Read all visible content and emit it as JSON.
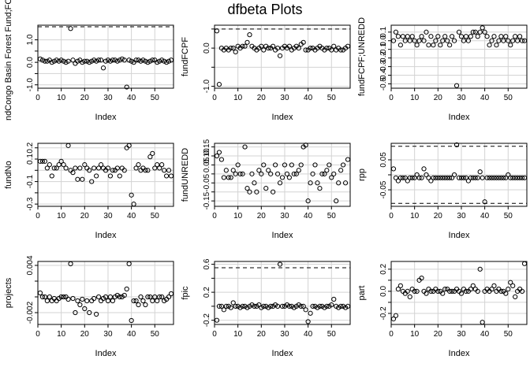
{
  "figure_title": "dfbeta Plots",
  "colors": {
    "grid": "#d3d3d3",
    "ink": "#000000",
    "background": "#ffffff"
  },
  "chart_data": [
    {
      "type": "scatter",
      "xlabel": "Index",
      "ylabel": "ndCongo Basin Forest Fund;FCF",
      "xlim": [
        0,
        58
      ],
      "ylim": [
        -1.15,
        1.65
      ],
      "xticks": [
        0,
        10,
        20,
        30,
        40,
        50
      ],
      "yticks": [
        -1.0,
        -0.5,
        0.0,
        0.5,
        1.0
      ],
      "ytick_labels": [
        "-1.0",
        "",
        "0.0",
        "",
        "1.0"
      ],
      "grid": true,
      "hlines": [
        1.58
      ],
      "y": [
        0.15,
        0.1,
        0.05,
        0.05,
        0.1,
        0.0,
        0.05,
        0.1,
        0.05,
        0.1,
        0.05,
        0.0,
        0.05,
        1.5,
        0.1,
        -0.05,
        0.05,
        0.1,
        0.0,
        0.05,
        0.05,
        0.0,
        0.05,
        0.1,
        0.05,
        0.1,
        0.1,
        -0.25,
        0.05,
        0.1,
        0.05,
        0.1,
        0.1,
        0.05,
        0.1,
        0.15,
        0.1,
        -1.1,
        0.1,
        0.05,
        0.0,
        0.1,
        0.1,
        0.05,
        0.1,
        0.05,
        0.0,
        0.05,
        0.1,
        0.1,
        0.0,
        0.05,
        0.1,
        0.05,
        0.0,
        0.05,
        0.1
      ]
    },
    {
      "type": "scatter",
      "xlabel": "Index",
      "ylabel": "fundFCPF",
      "xlim": [
        0,
        58
      ],
      "ylim": [
        -1.05,
        0.6
      ],
      "xticks": [
        0,
        10,
        20,
        30,
        40,
        50
      ],
      "yticks": [
        -1.0,
        -0.5,
        0.0,
        0.5
      ],
      "ytick_labels": [
        "-1.0",
        "",
        "0.0",
        ""
      ],
      "grid": true,
      "hlines": [
        0.5
      ],
      "y": [
        0.45,
        -0.95,
        0.0,
        -0.05,
        0.0,
        -0.05,
        0.0,
        0.0,
        -0.1,
        0.05,
        0.0,
        0.05,
        0.05,
        0.15,
        0.35,
        0.05,
        0.0,
        -0.05,
        0.0,
        0.05,
        -0.05,
        0.05,
        0.0,
        0.0,
        0.05,
        -0.05,
        0.0,
        -0.2,
        0.0,
        0.05,
        0.0,
        0.05,
        -0.05,
        0.0,
        0.05,
        0.0,
        0.1,
        0.15,
        -0.05,
        -0.05,
        0.0,
        0.0,
        -0.05,
        0.0,
        0.05,
        0.0,
        -0.05,
        0.0,
        0.0,
        -0.05,
        0.05,
        -0.05,
        0.0,
        -0.05,
        -0.05,
        0.0,
        0.05
      ]
    },
    {
      "type": "scatter",
      "xlabel": "Index",
      "ylabel": "fundFCPF;UNREDD",
      "xlim": [
        0,
        58
      ],
      "ylim": [
        -0.55,
        0.18
      ],
      "xticks": [
        0,
        10,
        20,
        30,
        40,
        50
      ],
      "yticks": [
        -0.5,
        -0.4,
        -0.3,
        -0.2,
        -0.1,
        0.0,
        0.1
      ],
      "ytick_labels": [
        "-0.5",
        "-0.4",
        "-0.3",
        "-0.2",
        "-0.1",
        "0.0",
        "0.1"
      ],
      "grid": true,
      "hlines": [],
      "y": [
        0.0,
        0.1,
        0.05,
        -0.05,
        0.05,
        0.0,
        0.05,
        0.0,
        0.05,
        0.0,
        -0.05,
        0.0,
        0.05,
        0.0,
        0.1,
        -0.05,
        0.05,
        -0.05,
        0.0,
        0.05,
        -0.05,
        0.0,
        0.05,
        0.0,
        -0.05,
        0.05,
        0.0,
        -0.52,
        0.1,
        0.05,
        0.0,
        0.05,
        0.0,
        0.05,
        0.1,
        0.1,
        0.05,
        0.1,
        0.15,
        0.1,
        0.05,
        -0.05,
        0.0,
        0.05,
        -0.05,
        0.0,
        0.05,
        0.0,
        0.05,
        0.0,
        -0.05,
        0.0,
        0.05,
        0.0,
        0.05,
        0.0,
        0.0
      ]
    },
    {
      "type": "scatter",
      "xlabel": "Index",
      "ylabel": "fundNo",
      "xlim": [
        0,
        58
      ],
      "ylim": [
        -0.32,
        0.24
      ],
      "xticks": [
        0,
        10,
        20,
        30,
        40,
        50
      ],
      "yticks": [
        -0.3,
        -0.2,
        -0.1,
        0.0,
        0.1,
        0.2
      ],
      "ytick_labels": [
        "-0.3",
        "",
        "-0.1",
        "",
        "0.1",
        "0.2"
      ],
      "grid": true,
      "hlines": [],
      "y": [
        0.08,
        0.08,
        0.08,
        0.02,
        0.05,
        -0.05,
        0.02,
        0.02,
        0.05,
        0.08,
        0.05,
        0.02,
        0.22,
        0.0,
        -0.02,
        0.02,
        -0.08,
        0.02,
        -0.08,
        0.05,
        0.02,
        0.0,
        -0.1,
        0.02,
        -0.05,
        0.02,
        0.05,
        0.02,
        0.0,
        0.02,
        -0.05,
        0.0,
        0.0,
        0.02,
        -0.05,
        0.02,
        0.0,
        0.2,
        0.22,
        -0.22,
        -0.3,
        0.02,
        0.05,
        0.0,
        0.02,
        0.0,
        0.0,
        0.12,
        0.15,
        0.02,
        0.05,
        0.02,
        0.05,
        0.0,
        -0.05,
        0.0,
        -0.05
      ]
    },
    {
      "type": "scatter",
      "xlabel": "Index",
      "ylabel": "fundUNREDD",
      "xlim": [
        0,
        58
      ],
      "ylim": [
        -0.18,
        0.17
      ],
      "xticks": [
        0,
        10,
        20,
        30,
        40,
        50
      ],
      "yticks": [
        -0.15,
        -0.1,
        -0.05,
        0.0,
        0.05,
        0.1,
        0.15
      ],
      "ytick_labels": [
        "-0.15",
        "",
        "-0.05",
        "",
        "0.05",
        "0.10",
        "0.15"
      ],
      "grid": true,
      "hlines": [],
      "y": [
        0.1,
        0.12,
        0.08,
        -0.02,
        0.02,
        -0.02,
        -0.02,
        0.02,
        0.0,
        0.05,
        0.0,
        0.0,
        0.15,
        -0.08,
        -0.1,
        0.0,
        -0.05,
        -0.1,
        0.02,
        0.0,
        0.05,
        -0.08,
        0.02,
        0.0,
        -0.1,
        0.05,
        0.0,
        -0.05,
        -0.02,
        0.05,
        0.0,
        -0.02,
        0.05,
        0.0,
        0.0,
        0.02,
        0.05,
        0.15,
        0.16,
        -0.15,
        -0.05,
        0.0,
        0.05,
        -0.05,
        -0.08,
        0.0,
        0.0,
        0.02,
        0.05,
        -0.02,
        0.0,
        -0.15,
        -0.05,
        0.02,
        0.05,
        -0.05,
        0.08
      ]
    },
    {
      "type": "scatter",
      "xlabel": "Index",
      "ylabel": "rpp",
      "xlim": [
        0,
        58
      ],
      "ylim": [
        -0.105,
        0.105
      ],
      "xticks": [
        0,
        10,
        20,
        30,
        40,
        50
      ],
      "yticks": [
        -0.05,
        0.0,
        0.05
      ],
      "ytick_labels": [
        "-0.05",
        "",
        "0.05"
      ],
      "grid": true,
      "hlines": [
        0.095,
        -0.095
      ],
      "y": [
        0.02,
        -0.01,
        -0.02,
        -0.01,
        -0.01,
        -0.01,
        -0.02,
        -0.01,
        -0.01,
        -0.01,
        0.0,
        -0.01,
        -0.01,
        0.02,
        0.0,
        -0.01,
        -0.02,
        -0.01,
        -0.01,
        -0.01,
        -0.01,
        -0.01,
        -0.01,
        -0.01,
        -0.01,
        -0.01,
        0.0,
        0.1,
        -0.01,
        -0.01,
        -0.01,
        -0.01,
        -0.02,
        -0.01,
        -0.01,
        -0.01,
        -0.01,
        0.01,
        -0.01,
        -0.09,
        -0.01,
        -0.01,
        -0.01,
        -0.01,
        -0.01,
        -0.01,
        -0.01,
        -0.01,
        -0.01,
        0.0,
        -0.01,
        -0.01,
        -0.01,
        -0.01,
        -0.01,
        -0.01,
        -0.01
      ]
    },
    {
      "type": "scatter",
      "xlabel": "Index",
      "ylabel": "projects",
      "xlim": [
        0,
        58
      ],
      "ylim": [
        -0.0035,
        0.0045
      ],
      "xticks": [
        0,
        10,
        20,
        30,
        40,
        50
      ],
      "yticks": [
        -0.002,
        0.0,
        0.002,
        0.004
      ],
      "ytick_labels": [
        "-0.002",
        "",
        "",
        "0.004"
      ],
      "grid": true,
      "hlines": [],
      "y": [
        0.0005,
        0.0,
        0.0,
        -0.0005,
        0.0,
        -0.0005,
        -0.0002,
        -0.0005,
        -0.0002,
        0.0,
        0.0,
        0.0,
        -0.0003,
        0.0042,
        -0.0002,
        -0.002,
        -0.0005,
        -0.001,
        -0.0003,
        -0.0015,
        -0.0005,
        -0.002,
        -0.0005,
        -0.0002,
        -0.0022,
        0.0,
        -0.0005,
        -0.0002,
        0.0,
        -0.0005,
        0.0,
        -0.0005,
        0.0,
        0.0002,
        0.0,
        0.0,
        0.0002,
        0.001,
        0.0042,
        -0.003,
        -0.0005,
        -0.0005,
        -0.001,
        0.0,
        -0.0005,
        -0.001,
        0.0,
        0.0,
        -0.0005,
        0.0,
        -0.0005,
        0.0,
        0.0,
        -0.0005,
        -0.0003,
        0.0,
        0.0004
      ]
    },
    {
      "type": "scatter",
      "xlabel": "Index",
      "ylabel": "fpic",
      "xlim": [
        0,
        58
      ],
      "ylim": [
        -0.26,
        0.64
      ],
      "xticks": [
        0,
        10,
        20,
        30,
        40,
        50
      ],
      "yticks": [
        -0.2,
        0.0,
        0.2,
        0.4,
        0.6
      ],
      "ytick_labels": [
        "-0.2",
        "",
        "0.2",
        "",
        "0.6"
      ],
      "grid": true,
      "hlines": [
        0.55
      ],
      "y": [
        -0.2,
        0.0,
        0.0,
        -0.05,
        0.0,
        0.0,
        -0.02,
        0.05,
        0.0,
        0.0,
        -0.02,
        0.0,
        0.0,
        -0.02,
        0.0,
        0.02,
        0.0,
        0.0,
        0.02,
        -0.02,
        0.0,
        0.0,
        -0.02,
        0.0,
        0.0,
        0.02,
        0.0,
        0.6,
        0.0,
        0.0,
        0.02,
        0.0,
        0.0,
        -0.02,
        0.0,
        0.02,
        0.0,
        0.0,
        -0.05,
        -0.22,
        -0.1,
        0.0,
        0.0,
        -0.02,
        0.0,
        0.0,
        -0.02,
        0.0,
        0.0,
        0.02,
        0.1,
        0.0,
        -0.02,
        0.0,
        0.0,
        -0.02,
        0.0
      ]
    },
    {
      "type": "scatter",
      "xlabel": "Index",
      "ylabel": "part",
      "xlim": [
        0,
        58
      ],
      "ylim": [
        -0.3,
        0.27
      ],
      "xticks": [
        0,
        10,
        20,
        30,
        40,
        50
      ],
      "yticks": [
        -0.2,
        -0.1,
        0.0,
        0.1,
        0.2
      ],
      "ytick_labels": [
        "-0.2",
        "",
        "0.0",
        "",
        "0.2"
      ],
      "grid": true,
      "hlines": [],
      "y": [
        -0.25,
        -0.22,
        0.02,
        0.05,
        0.0,
        -0.02,
        0.0,
        -0.05,
        0.02,
        0.0,
        0.0,
        0.1,
        0.12,
        0.0,
        -0.02,
        0.02,
        0.0,
        0.0,
        0.02,
        0.0,
        0.0,
        -0.02,
        0.02,
        0.02,
        0.0,
        0.0,
        0.0,
        0.02,
        0.0,
        -0.02,
        0.02,
        0.0,
        0.0,
        0.02,
        0.05,
        0.02,
        0.0,
        0.2,
        -0.28,
        0.0,
        0.02,
        0.0,
        0.02,
        0.05,
        0.0,
        0.02,
        0.0,
        0.0,
        -0.02,
        0.02,
        0.08,
        0.05,
        -0.05,
        0.0,
        0.02,
        0.0,
        0.25
      ]
    }
  ]
}
